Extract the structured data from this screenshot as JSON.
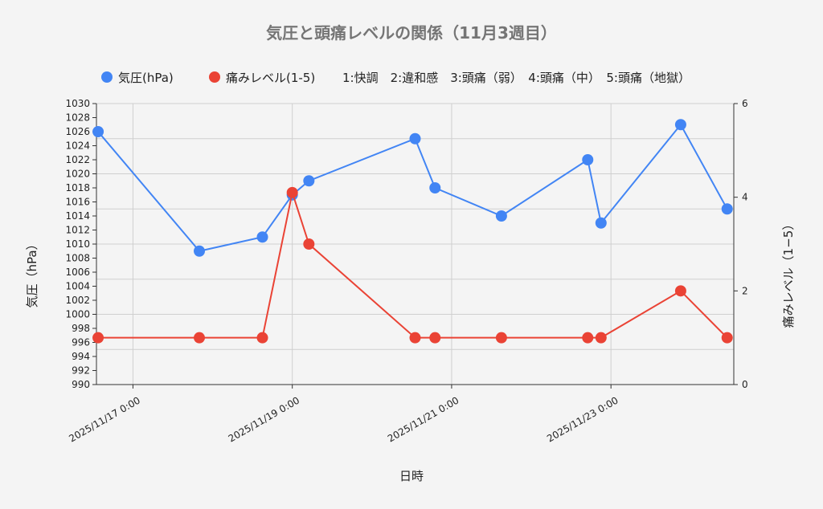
{
  "chart_data": {
    "type": "line",
    "title": "気圧と頭痛レベルの関係（11月3週目）",
    "xlabel": "日時",
    "ylabel_left": "気圧（hPa）",
    "ylabel_right": "痛みレベル（1−5）",
    "legend_position": "top",
    "grid": true,
    "x_ticks": [
      "2025/11/17 0:00",
      "2025/11/19 0:00",
      "2025/11/21 0:00",
      "2025/11/23 0:00"
    ],
    "x_range": [
      "2025/11/16 13:00",
      "2025/11/24 13:00"
    ],
    "y_left_range": [
      990,
      1030
    ],
    "y_left_ticks": [
      "990",
      "992",
      "994",
      "996",
      "998",
      "1000",
      "1002",
      "1004",
      "1006",
      "1008",
      "1010",
      "1012",
      "1014",
      "1016",
      "1018",
      "1020",
      "1022",
      "1024",
      "1026",
      "1028",
      "1030"
    ],
    "y_right_range": [
      0,
      6
    ],
    "y_right_ticks": [
      "0",
      "2",
      "4",
      "6"
    ],
    "series": [
      {
        "name": "気圧(hPa)",
        "axis": "left",
        "color": "#4285f4",
        "x": [
          "2025/11/16 13:30",
          "2025/11/17 20:00",
          "2025/11/18 15:00",
          "2025/11/19 0:00",
          "2025/11/19 5:00",
          "2025/11/20 13:00",
          "2025/11/20 19:00",
          "2025/11/21 15:00",
          "2025/11/22 17:00",
          "2025/11/22 21:00",
          "2025/11/23 21:00",
          "2025/11/24 11:00"
        ],
        "values": [
          1026,
          1009,
          1011,
          1017,
          1019,
          1025,
          1018,
          1014,
          1022,
          1013,
          1027,
          1015
        ]
      },
      {
        "name": "痛みレベル(1-5)",
        "axis": "right",
        "color": "#ea4335",
        "x": [
          "2025/11/16 13:30",
          "2025/11/17 20:00",
          "2025/11/18 15:00",
          "2025/11/19 0:00",
          "2025/11/19 5:00",
          "2025/11/20 13:00",
          "2025/11/20 19:00",
          "2025/11/21 15:00",
          "2025/11/22 17:00",
          "2025/11/22 21:00",
          "2025/11/23 21:00",
          "2025/11/24 11:00"
        ],
        "values": [
          1,
          1,
          1,
          4.1,
          3,
          1,
          1,
          1,
          1,
          1,
          2,
          1
        ]
      }
    ],
    "legend_note": "1:快調　2:違和感　3:頭痛（弱）　4:頭痛（中）　5:頭痛（地獄）"
  }
}
